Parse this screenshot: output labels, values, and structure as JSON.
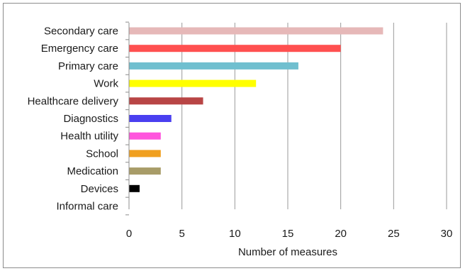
{
  "chart_data": {
    "type": "bar",
    "orientation": "horizontal",
    "categories": [
      "Secondary care",
      "Emergency care",
      "Primary care",
      "Work",
      "Healthcare delivery",
      "Diagnostics",
      "Health utility",
      "School",
      "Medication",
      "Devices",
      "Informal care"
    ],
    "values": [
      24,
      20,
      16,
      12,
      7,
      4,
      3,
      3,
      3,
      1,
      0
    ],
    "colors": [
      "#e6b8b8",
      "#ff5050",
      "#70bfcf",
      "#ffff00",
      "#b84545",
      "#4a3ff0",
      "#ff55dd",
      "#f0a020",
      "#a89c68",
      "#000000",
      "#cccccc"
    ],
    "xlabel": "Number  of measures",
    "ylabel": "",
    "title": "",
    "xlim": [
      0,
      30
    ],
    "xticks": [
      0,
      5,
      10,
      15,
      20,
      25,
      30
    ],
    "grid": "vertical"
  }
}
